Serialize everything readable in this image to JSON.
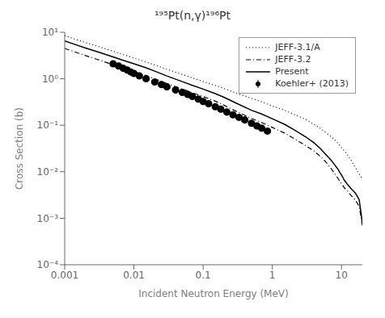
{
  "chart_data": {
    "type": "line",
    "title": "¹⁹⁵Pt(n,γ)¹⁹⁶Pt",
    "xlabel": "Incident Neutron Energy (MeV)",
    "ylabel": "Cross Section (b)",
    "log": true,
    "grid": false,
    "legend": "upper right",
    "xlim": [
      0.001,
      20
    ],
    "ylim": [
      0.0001,
      10
    ],
    "xticks": [
      0.001,
      0.01,
      0.1,
      1,
      10
    ],
    "yticks": [
      {
        "value": 0.0001,
        "label": "10⁻⁴"
      },
      {
        "value": 0.001,
        "label": "10⁻³"
      },
      {
        "value": 0.01,
        "label": "10⁻²"
      },
      {
        "value": 0.1,
        "label": "10⁻¹"
      },
      {
        "value": 1,
        "label": "10⁰"
      },
      {
        "value": 10,
        "label": "10¹"
      }
    ],
    "series": [
      {
        "name": "JEFF-3.1/A",
        "type": "line",
        "color": "black",
        "line_style": "dotted",
        "x": [
          0.001,
          0.0015,
          0.002,
          0.003,
          0.005,
          0.007,
          0.01,
          0.015,
          0.02,
          0.03,
          0.05,
          0.07,
          0.1,
          0.15,
          0.2,
          0.3,
          0.5,
          0.7,
          1.0,
          1.5,
          2.0,
          3.0,
          4.0,
          5.0,
          6.0,
          7.0,
          8.0,
          9.0,
          10.0,
          11.0,
          12.0,
          13.0,
          14.0,
          15.0,
          16.0,
          18.0,
          20.0
        ],
        "values": [
          8.5,
          6.9,
          6.0,
          5.0,
          3.9,
          3.3,
          2.8,
          2.3,
          1.98,
          1.6,
          1.24,
          1.04,
          0.87,
          0.72,
          0.62,
          0.49,
          0.38,
          0.32,
          0.26,
          0.21,
          0.175,
          0.135,
          0.105,
          0.085,
          0.068,
          0.058,
          0.048,
          0.04,
          0.033,
          0.028,
          0.024,
          0.02,
          0.017,
          0.014,
          0.012,
          0.009,
          0.007
        ]
      },
      {
        "name": "JEFF-3.2",
        "type": "line",
        "color": "black",
        "line_style": "dashdot",
        "x": [
          0.001,
          0.0015,
          0.002,
          0.003,
          0.005,
          0.007,
          0.01,
          0.015,
          0.02,
          0.03,
          0.05,
          0.07,
          0.1,
          0.15,
          0.2,
          0.3,
          0.5,
          0.7,
          1.0,
          1.5,
          2.0,
          3.0,
          4.0,
          5.0,
          6.0,
          7.0,
          8.0,
          9.0,
          9.5,
          10.0,
          10.5,
          11.0,
          11.5,
          12.0,
          13.0,
          14.0,
          15.0,
          16.0,
          18.0,
          20.0
        ],
        "values": [
          4.5,
          3.65,
          3.15,
          2.6,
          2.0,
          1.7,
          1.44,
          1.17,
          0.995,
          0.79,
          0.6,
          0.5,
          0.415,
          0.33,
          0.27,
          0.2,
          0.14,
          0.115,
          0.09,
          0.068,
          0.053,
          0.037,
          0.028,
          0.021,
          0.016,
          0.012,
          0.009,
          0.007,
          0.0062,
          0.0055,
          0.005,
          0.0045,
          0.0042,
          0.004,
          0.0034,
          0.003,
          0.0027,
          0.0024,
          0.0018,
          0.0007
        ]
      },
      {
        "name": "Present",
        "type": "line",
        "color": "black",
        "line_style": "solid",
        "x": [
          0.001,
          0.0015,
          0.002,
          0.003,
          0.005,
          0.007,
          0.01,
          0.015,
          0.02,
          0.03,
          0.05,
          0.07,
          0.1,
          0.15,
          0.2,
          0.3,
          0.5,
          0.7,
          1.0,
          1.5,
          2.0,
          3.0,
          4.0,
          5.0,
          6.0,
          7.0,
          8.0,
          9.0,
          9.5,
          10.0,
          10.5,
          11.0,
          11.5,
          12.0,
          13.0,
          14.0,
          15.0,
          16.0,
          18.0,
          20.0
        ],
        "values": [
          6.5,
          5.3,
          4.6,
          3.8,
          2.95,
          2.5,
          2.1,
          1.72,
          1.46,
          1.15,
          0.87,
          0.72,
          0.6,
          0.48,
          0.4,
          0.3,
          0.21,
          0.175,
          0.138,
          0.105,
          0.082,
          0.057,
          0.042,
          0.031,
          0.023,
          0.018,
          0.014,
          0.011,
          0.0095,
          0.0085,
          0.0075,
          0.0065,
          0.006,
          0.0055,
          0.0048,
          0.0042,
          0.0038,
          0.0034,
          0.0025,
          0.0008
        ]
      },
      {
        "name": "Koehler+ (2013)",
        "type": "scatter",
        "color": "black",
        "marker": "circle",
        "x": [
          0.005,
          0.006,
          0.007,
          0.008,
          0.009,
          0.01,
          0.012,
          0.015,
          0.02,
          0.025,
          0.03,
          0.04,
          0.05,
          0.06,
          0.07,
          0.085,
          0.1,
          0.12,
          0.15,
          0.18,
          0.22,
          0.27,
          0.33,
          0.4,
          0.5,
          0.6,
          0.7,
          0.85
        ],
        "values": [
          2.1,
          1.88,
          1.68,
          1.54,
          1.4,
          1.3,
          1.15,
          1.0,
          0.85,
          0.75,
          0.67,
          0.575,
          0.51,
          0.46,
          0.415,
          0.365,
          0.325,
          0.29,
          0.25,
          0.222,
          0.192,
          0.168,
          0.148,
          0.13,
          0.11,
          0.097,
          0.087,
          0.075
        ],
        "error_lo": [
          0.12,
          0.11,
          0.1,
          0.09,
          0.08,
          0.08,
          0.07,
          0.065,
          0.055,
          0.048,
          0.042,
          0.036,
          0.032,
          0.028,
          0.026,
          0.022,
          0.02,
          0.018,
          0.016,
          0.014,
          0.012,
          0.01,
          0.009,
          0.008,
          0.007,
          0.006,
          0.005,
          0.005
        ],
        "error_hi": [
          0.12,
          0.11,
          0.1,
          0.09,
          0.08,
          0.08,
          0.07,
          0.065,
          0.055,
          0.048,
          0.042,
          0.036,
          0.032,
          0.028,
          0.026,
          0.022,
          0.02,
          0.018,
          0.016,
          0.014,
          0.012,
          0.01,
          0.009,
          0.008,
          0.007,
          0.006,
          0.005,
          0.005
        ]
      }
    ]
  }
}
